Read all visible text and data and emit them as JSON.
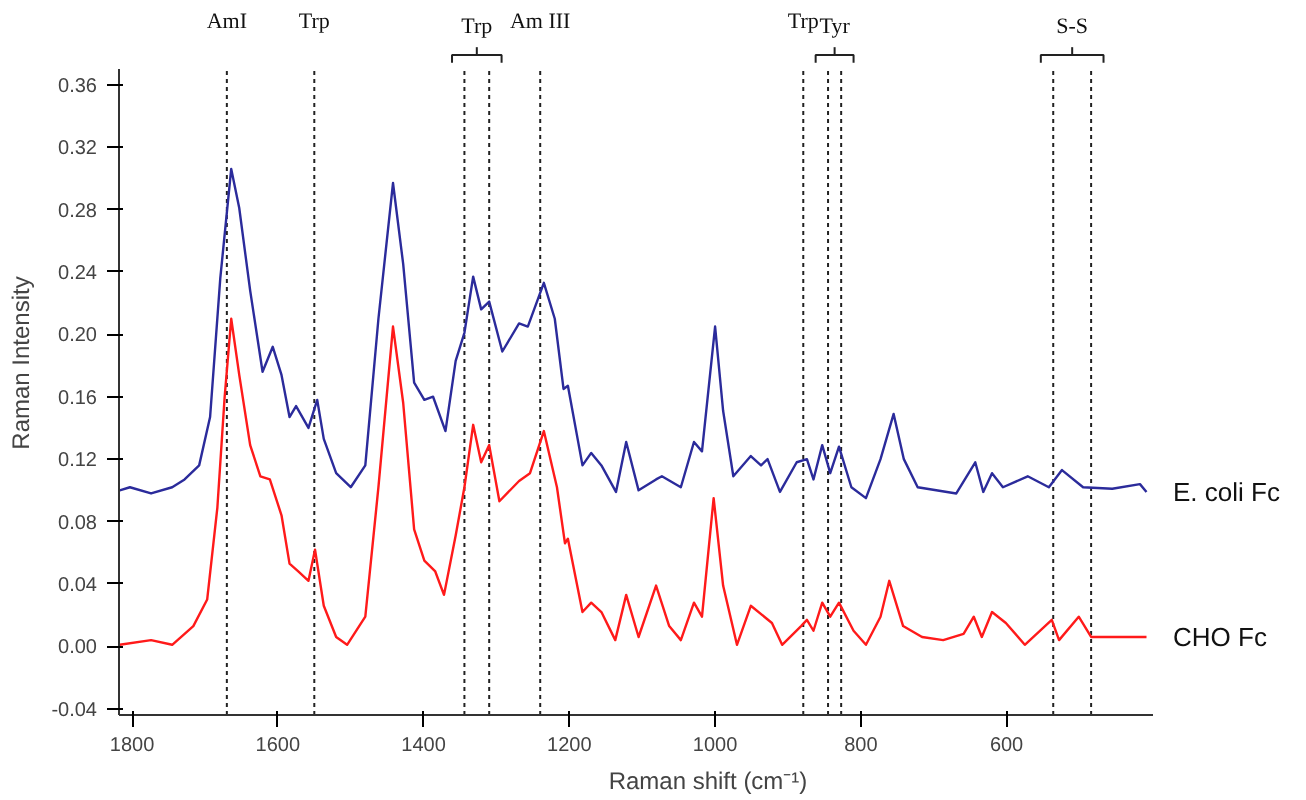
{
  "chart_data": {
    "type": "line",
    "xlabel": "Raman shift (cm⁻¹)",
    "ylabel": "Raman Intensity",
    "xlim": [
      1818,
      400
    ],
    "ylim": [
      -0.044,
      0.37
    ],
    "xticks": [
      1800,
      1600,
      1400,
      1200,
      1000,
      800,
      600
    ],
    "yticks": [
      {
        "value": -0.04,
        "label": "-0.04"
      },
      {
        "value": 0,
        "label": "0.00"
      },
      0.04,
      0.08,
      0.12,
      0.16,
      {
        "value": 0.2,
        "label": "0.20"
      },
      0.24,
      0.28,
      0.32,
      0.36
    ],
    "grid": false,
    "marker": "none",
    "line_style": "solid",
    "ref_lines": [
      {
        "axis": "x",
        "value": 1670,
        "label": "AmI",
        "line_style": "dotted"
      },
      {
        "axis": "x",
        "value": 1550,
        "label": "Trp",
        "line_style": "dotted"
      },
      {
        "axis": "x",
        "value": 1344,
        "label": "Trp",
        "line_style": "dotted"
      },
      {
        "axis": "x",
        "value": 1310,
        "label": null,
        "line_style": "dotted"
      },
      {
        "axis": "x",
        "value": 1240,
        "label": "Am III",
        "line_style": "dotted"
      },
      {
        "axis": "x",
        "value": 879,
        "label": "Trp",
        "line_style": "dotted"
      },
      {
        "axis": "x",
        "value": 845,
        "label": "Tyr",
        "line_style": "dotted"
      },
      {
        "axis": "x",
        "value": 827,
        "label": null,
        "line_style": "dotted"
      },
      {
        "axis": "x",
        "value": 536,
        "label": "S-S",
        "line_style": "dotted"
      },
      {
        "axis": "x",
        "value": 484,
        "label": null,
        "line_style": "dotted"
      }
    ],
    "series": [
      {
        "name": "E. coli Fc",
        "color": "#2b2b9b",
        "x": [
          1817,
          1803,
          1774,
          1745,
          1728,
          1708,
          1693,
          1679,
          1664,
          1653,
          1638,
          1621,
          1607,
          1595,
          1584,
          1575,
          1558,
          1546,
          1537,
          1520,
          1500,
          1480,
          1462,
          1442,
          1428,
          1413,
          1399,
          1387,
          1370,
          1356,
          1344,
          1332,
          1321,
          1310,
          1292,
          1269,
          1257,
          1235,
          1220,
          1208,
          1202,
          1182,
          1170,
          1156,
          1136,
          1122,
          1105,
          1081,
          1073,
          1047,
          1029,
          1018,
          1000,
          989,
          975,
          951,
          937,
          928,
          911,
          888,
          874,
          865,
          853,
          842,
          830,
          813,
          793,
          773,
          755,
          741,
          722,
          669,
          643,
          632,
          620,
          605,
          571,
          542,
          524,
          495,
          455,
          417,
          408
        ],
        "values": [
          0.1,
          0.102,
          0.098,
          0.102,
          0.107,
          0.116,
          0.147,
          0.236,
          0.306,
          0.281,
          0.228,
          0.176,
          0.192,
          0.174,
          0.147,
          0.154,
          0.14,
          0.158,
          0.133,
          0.111,
          0.102,
          0.116,
          0.21,
          0.297,
          0.245,
          0.169,
          0.158,
          0.16,
          0.138,
          0.183,
          0.201,
          0.237,
          0.216,
          0.221,
          0.189,
          0.207,
          0.205,
          0.233,
          0.21,
          0.165,
          0.167,
          0.116,
          0.124,
          0.116,
          0.099,
          0.131,
          0.1,
          0.107,
          0.109,
          0.102,
          0.131,
          0.125,
          0.205,
          0.151,
          0.109,
          0.122,
          0.116,
          0.12,
          0.099,
          0.118,
          0.12,
          0.107,
          0.129,
          0.111,
          0.128,
          0.102,
          0.095,
          0.12,
          0.149,
          0.12,
          0.102,
          0.098,
          0.118,
          0.099,
          0.111,
          0.102,
          0.109,
          0.102,
          0.113,
          0.102,
          0.101,
          0.104,
          0.099
        ]
      },
      {
        "name": "CHO Fc",
        "color": "#ff1a1a",
        "x": [
          1817,
          1774,
          1745,
          1716,
          1697,
          1683,
          1673,
          1664,
          1653,
          1638,
          1624,
          1611,
          1595,
          1584,
          1572,
          1558,
          1549,
          1537,
          1520,
          1505,
          1480,
          1462,
          1442,
          1428,
          1413,
          1399,
          1384,
          1372,
          1356,
          1344,
          1332,
          1321,
          1310,
          1296,
          1269,
          1254,
          1235,
          1217,
          1206,
          1202,
          1182,
          1170,
          1156,
          1137,
          1122,
          1105,
          1081,
          1063,
          1047,
          1029,
          1018,
          1002,
          989,
          970,
          951,
          922,
          908,
          882,
          874,
          865,
          853,
          842,
          830,
          810,
          793,
          773,
          761,
          742,
          716,
          687,
          659,
          645,
          634,
          620,
          601,
          575,
          538,
          528,
          501,
          484,
          436,
          408
        ],
        "values": [
          0.001,
          0.004,
          0.001,
          0.013,
          0.03,
          0.089,
          0.16,
          0.21,
          0.174,
          0.129,
          0.109,
          0.107,
          0.084,
          0.053,
          0.048,
          0.042,
          0.062,
          0.026,
          0.006,
          0.001,
          0.019,
          0.102,
          0.205,
          0.156,
          0.075,
          0.055,
          0.048,
          0.033,
          0.071,
          0.102,
          0.142,
          0.118,
          0.129,
          0.093,
          0.106,
          0.111,
          0.138,
          0.102,
          0.066,
          0.069,
          0.022,
          0.028,
          0.022,
          0.004,
          0.033,
          0.006,
          0.039,
          0.013,
          0.004,
          0.028,
          0.019,
          0.095,
          0.039,
          0.001,
          0.026,
          0.015,
          0.001,
          0.013,
          0.017,
          0.01,
          0.028,
          0.019,
          0.028,
          0.01,
          0.001,
          0.019,
          0.042,
          0.013,
          0.006,
          0.004,
          0.008,
          0.019,
          0.006,
          0.022,
          0.015,
          0.001,
          0.017,
          0.004,
          0.019,
          0.006,
          0.006,
          0.006
        ]
      }
    ]
  }
}
